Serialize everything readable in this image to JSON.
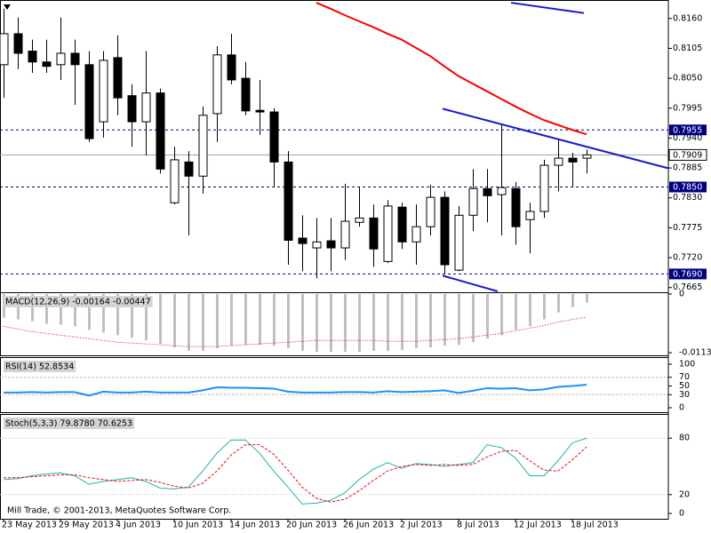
{
  "chart_data": [
    {
      "type": "candlestick",
      "categories": [
        "23 May 2013",
        null,
        null,
        null,
        "29 May 2013",
        null,
        null,
        null,
        "4 Jun 2013",
        null,
        null,
        null,
        "10 Jun 2013",
        null,
        null,
        null,
        "14 Jun 2013",
        null,
        null,
        null,
        "20 Jun 2013",
        null,
        null,
        null,
        "26 Jun 2013",
        null,
        null,
        null,
        "2 Jul 2013",
        null,
        null,
        null,
        "8 Jul 2013",
        null,
        null,
        null,
        "12 Jul 2013",
        null,
        null,
        null,
        "18 Jul 2013",
        null
      ],
      "open": [
        0.8075,
        0.8132,
        0.81,
        0.808,
        0.8075,
        0.8096,
        0.8075,
        0.797,
        0.8088,
        0.8018,
        0.797,
        0.8023,
        0.7821,
        0.7896,
        0.787,
        0.7985,
        0.8093,
        0.805,
        0.7991,
        0.7988,
        0.7896,
        0.7756,
        0.7738,
        0.7751,
        0.7738,
        0.7785,
        0.7793,
        0.7713,
        0.7813,
        0.7749,
        0.7777,
        0.7831,
        0.7697,
        0.7798,
        0.7847,
        0.7836,
        0.7847,
        0.779,
        0.7805,
        0.789,
        0.7903,
        0.7903
      ],
      "high": [
        0.8178,
        0.8162,
        0.8121,
        0.8121,
        0.8162,
        0.8121,
        0.81,
        0.81,
        0.8129,
        0.8039,
        0.81,
        0.8031,
        0.7924,
        0.7916,
        0.7998,
        0.8109,
        0.8132,
        0.808,
        0.8047,
        0.7995,
        0.7916,
        0.7798,
        0.7793,
        0.7793,
        0.7856,
        0.7851,
        0.7818,
        0.7826,
        0.7821,
        0.7818,
        0.7854,
        0.7842,
        0.7815,
        0.7883,
        0.7883,
        0.7965,
        0.7859,
        0.7821,
        0.79,
        0.7936,
        0.7913,
        0.7919
      ],
      "low": [
        0.8014,
        0.8067,
        0.806,
        0.806,
        0.8047,
        0.8001,
        0.7933,
        0.7941,
        0.7982,
        0.7924,
        0.7908,
        0.7875,
        0.7818,
        0.7761,
        0.7838,
        0.7933,
        0.8039,
        0.7982,
        0.7946,
        0.7851,
        0.7707,
        0.7695,
        0.7682,
        0.7695,
        0.7716,
        0.7777,
        0.7703,
        0.771,
        0.7736,
        0.7707,
        0.7761,
        0.769,
        0.7695,
        0.7769,
        0.7785,
        0.7761,
        0.7744,
        0.7728,
        0.7793,
        0.7842,
        0.7851,
        0.7875
      ],
      "close": [
        0.8132,
        0.8096,
        0.808,
        0.8072,
        0.8096,
        0.8075,
        0.7939,
        0.8083,
        0.8014,
        0.797,
        0.8023,
        0.7883,
        0.79,
        0.787,
        0.7982,
        0.8093,
        0.8047,
        0.799,
        0.7988,
        0.7896,
        0.7752,
        0.7746,
        0.7749,
        0.7738,
        0.7787,
        0.7793,
        0.7736,
        0.7815,
        0.7749,
        0.7777,
        0.7831,
        0.7707,
        0.7798,
        0.7847,
        0.7834,
        0.7849,
        0.7777,
        0.7805,
        0.789,
        0.7903,
        0.7896,
        0.7909
      ],
      "up_color": "#ffffff",
      "down_color": "#000000",
      "ma": {
        "color": "#ff0000",
        "values": [
          null,
          null,
          null,
          null,
          null,
          null,
          null,
          null,
          null,
          null,
          null,
          null,
          null,
          null,
          null,
          null,
          null,
          null,
          null,
          null,
          null,
          null,
          0.8189,
          0.8178,
          0.8166,
          0.8155,
          0.8144,
          0.8132,
          0.8121,
          0.8106,
          0.8091,
          0.8072,
          0.8054,
          0.804,
          0.8026,
          0.8012,
          0.7998,
          0.7985,
          0.7973,
          0.7964,
          0.7955,
          0.7947
        ]
      },
      "trendlines": [
        {
          "color": "#1a1ac8",
          "x": [
            35.69,
            40.81
          ],
          "y": [
            0.8189,
            0.817
          ]
        },
        {
          "color": "#1a1ac8",
          "x": [
            30.875,
            47.25
          ],
          "y": [
            0.7994,
            0.7881
          ]
        },
        {
          "color": "#1a1ac8",
          "x": [
            30.875,
            34.75
          ],
          "y": [
            0.7687,
            0.7658
          ]
        }
      ],
      "levels": [
        {
          "value": 0.7955,
          "label": "0.7955"
        },
        {
          "value": 0.785,
          "label": "0.7850"
        },
        {
          "value": 0.769,
          "label": "0.7690"
        }
      ],
      "level_color": "#000080",
      "current": {
        "value": 0.7909,
        "label": "0.7909"
      },
      "ylim": [
        0.7658,
        0.8194
      ],
      "yticks": [
        {
          "value": 0.816,
          "label": "0.8160"
        },
        {
          "value": 0.8105,
          "label": "0.8105"
        },
        {
          "value": 0.805,
          "label": "0.8050"
        },
        {
          "value": 0.7995,
          "label": "0.7995"
        },
        {
          "value": 0.794,
          "label": "0.7940"
        },
        {
          "value": 0.7885,
          "label": "0.7885"
        },
        {
          "value": 0.783,
          "label": "0.7830"
        },
        {
          "value": 0.7775,
          "label": "0.7775"
        },
        {
          "value": 0.772,
          "label": "0.7720"
        },
        {
          "value": 0.7665,
          "label": "0.7665"
        }
      ]
    },
    {
      "type": "macd",
      "title": "MACD(12,26,9) -0.00164 -0.00447",
      "ylim": [
        -0.01136,
        0
      ],
      "yticks": [
        0,
        -0.01136
      ],
      "series": [
        {
          "style": "histogram",
          "color": "#c0c0c0",
          "values": [
            -0.00458,
            -0.00492,
            -0.00526,
            -0.00576,
            -0.00593,
            -0.00627,
            -0.00695,
            -0.00746,
            -0.00797,
            -0.00848,
            -0.00899,
            -0.00966,
            -0.01034,
            -0.01102,
            -0.01102,
            -0.01051,
            -0.01,
            -0.00983,
            -0.00983,
            -0.01,
            -0.01051,
            -0.01102,
            -0.01119,
            -0.01119,
            -0.01119,
            -0.01119,
            -0.01102,
            -0.01102,
            -0.01085,
            -0.01051,
            -0.01034,
            -0.01,
            -0.00983,
            -0.00933,
            -0.00865,
            -0.00797,
            -0.00695,
            -0.00627,
            -0.00492,
            -0.00356,
            -0.00254,
            -0.00164
          ]
        },
        {
          "style": "dotted",
          "color": "#ff0000",
          "values": [
            -0.00627,
            -0.00678,
            -0.00729,
            -0.00763,
            -0.00797,
            -0.00831,
            -0.00865,
            -0.00899,
            -0.00933,
            -0.00949,
            -0.00966,
            -0.00983,
            -0.01,
            -0.01017,
            -0.01017,
            -0.01017,
            -0.01,
            -0.00983,
            -0.00966,
            -0.00949,
            -0.00933,
            -0.00916,
            -0.00899,
            -0.00899,
            -0.00899,
            -0.00899,
            -0.00899,
            -0.00916,
            -0.00916,
            -0.00916,
            -0.00899,
            -0.00882,
            -0.00865,
            -0.00831,
            -0.00797,
            -0.00763,
            -0.00712,
            -0.00661,
            -0.0061,
            -0.00543,
            -0.00492,
            -0.00447
          ]
        }
      ]
    },
    {
      "type": "line",
      "title": "RSI(14) 52.8534",
      "ylim": [
        0,
        100
      ],
      "yticks": [
        100,
        70,
        50,
        30,
        0
      ],
      "levels": [
        70,
        30
      ],
      "level_color": "#808080",
      "series": [
        {
          "style": "solid",
          "color": "#1e90ff",
          "values": [
            35,
            35,
            36,
            35,
            36,
            36,
            28,
            37,
            35,
            35,
            37,
            35,
            35,
            35,
            40,
            47,
            46,
            46,
            45,
            44,
            37,
            35,
            35,
            35,
            36,
            36,
            35,
            38,
            36,
            37,
            38,
            40,
            34,
            39,
            45,
            44,
            45,
            40,
            42,
            48,
            50,
            52.8534
          ]
        }
      ]
    },
    {
      "type": "line",
      "title": "Stoch(5,3,3) 79.8780 70.6253",
      "ylim": [
        0,
        100
      ],
      "yticks": [
        80,
        20,
        0
      ],
      "levels": [
        80,
        20
      ],
      "level_color": "#c0c0c0",
      "series": [
        {
          "style": "solid",
          "color": "#20b2aa",
          "values": [
            36,
            37,
            40,
            42,
            43,
            40,
            31,
            34,
            36,
            38,
            34,
            27,
            26,
            28,
            45,
            64,
            78,
            78,
            64,
            45,
            28,
            10,
            11,
            14,
            22,
            36,
            47,
            54,
            48,
            53,
            52,
            50,
            52,
            54,
            73,
            70,
            59,
            40,
            40,
            56,
            75,
            79.878
          ]
        },
        {
          "style": "dashed",
          "color": "#ff0000",
          "values": [
            38,
            38,
            39,
            40,
            41,
            41,
            38,
            36,
            34,
            35,
            36,
            33,
            29,
            27,
            32,
            45,
            62,
            73,
            73,
            63,
            46,
            28,
            16,
            12,
            15,
            24,
            35,
            45,
            50,
            52,
            51,
            52,
            51,
            52,
            60,
            66,
            67,
            56,
            46,
            45,
            57,
            70.6253
          ]
        }
      ]
    }
  ],
  "footer": "Mill Trade, © 2001-2013, MetaQuotes Software Corp."
}
